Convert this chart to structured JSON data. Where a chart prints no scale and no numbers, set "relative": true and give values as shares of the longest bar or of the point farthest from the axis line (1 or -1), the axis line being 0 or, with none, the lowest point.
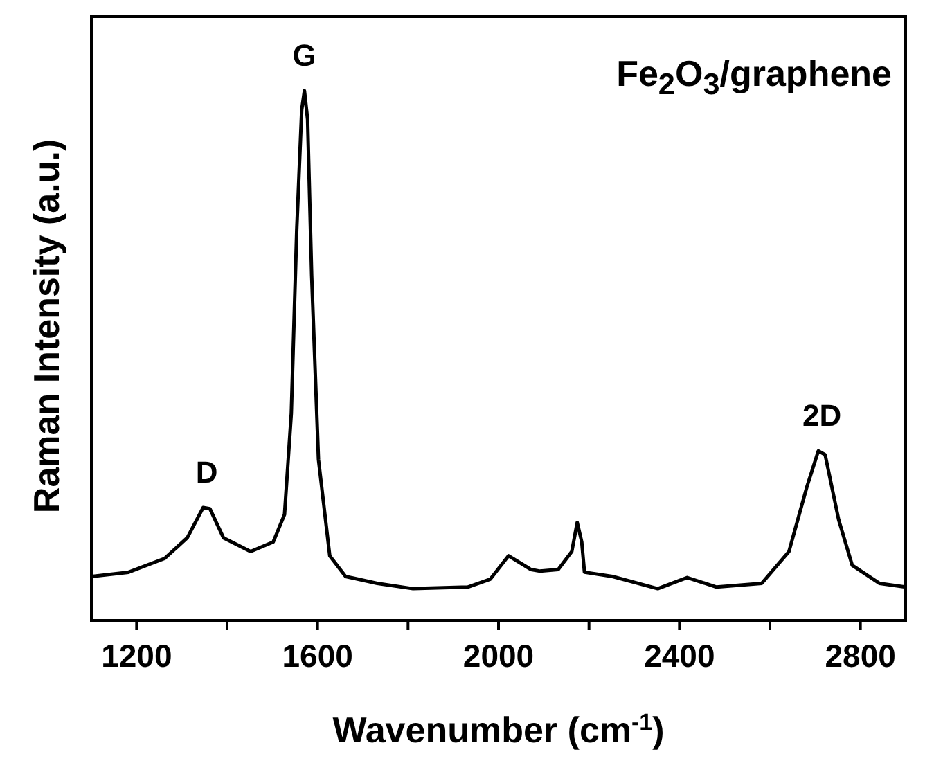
{
  "chart_data": {
    "type": "line",
    "relative": true,
    "xlabel": "Wavenumber (cm$^{-1}$)",
    "ylabel": "Raman Intensity (a.u.)",
    "xlim": [
      1100,
      2900
    ],
    "xticks": [
      1200,
      {
        "value": 1400,
        "label": null
      },
      1600,
      {
        "value": 1800,
        "label": null
      },
      2000,
      {
        "value": 2200,
        "label": null
      },
      2400,
      {
        "value": 2600,
        "label": null
      },
      2800
    ],
    "x": [
      1100,
      1182,
      1262,
      1312,
      1347,
      1362,
      1392,
      1452,
      1502,
      1527,
      1542,
      1554,
      1565,
      1571,
      1578,
      1587,
      1602,
      1627,
      1662,
      1732,
      1811,
      1932,
      1982,
      2022,
      2072,
      2092,
      2132,
      2162,
      2174,
      2184,
      2190,
      2252,
      2352,
      2417,
      2482,
      2582,
      2642,
      2682,
      2707,
      2722,
      2752,
      2782,
      2842,
      2900
    ],
    "series": [
      {
        "color": "#000000",
        "values": [
          0.083,
          0.091,
          0.117,
          0.156,
          0.213,
          0.211,
          0.156,
          0.13,
          0.148,
          0.2,
          0.391,
          0.738,
          0.964,
          1.0,
          0.946,
          0.651,
          0.304,
          0.122,
          0.083,
          0.07,
          0.06,
          0.063,
          0.078,
          0.122,
          0.096,
          0.093,
          0.096,
          0.13,
          0.185,
          0.148,
          0.091,
          0.083,
          0.06,
          0.081,
          0.063,
          0.07,
          0.13,
          0.253,
          0.32,
          0.313,
          0.19,
          0.104,
          0.07,
          0.063
        ]
      }
    ],
    "marker": "none",
    "line_style": "solid",
    "grid": false,
    "legend": false,
    "annotations": [
      {
        "text": "D",
        "x": 1355,
        "y": 0.213
      },
      {
        "text": "G",
        "x": 1571,
        "y": 1.0
      },
      {
        "text": "2D",
        "x": 2715,
        "y": 0.32
      },
      "Fe$_{2}$O$_{3}$/graphene"
    ]
  }
}
